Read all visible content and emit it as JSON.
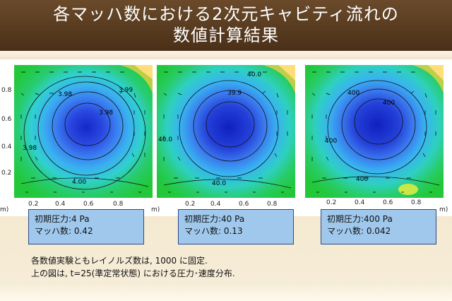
{
  "slide": {
    "title_line1": "各マッハ数における2次元キャビティ流れの",
    "title_line2": "数値計算結果"
  },
  "y_ticks": [
    "0.8",
    "0.6",
    "0.4",
    "0.2"
  ],
  "x_ticks": [
    "0.2",
    "0.4",
    "0.6",
    "0.8"
  ],
  "axis_unit_fragment": "m)",
  "panels": [
    {
      "contour_labels": [
        "3.98",
        "3.99",
        "3.98",
        "4.00",
        "3.98"
      ],
      "info": {
        "pressure": "初期圧力:4 Pa",
        "mach": "マッハ数: 0.42"
      }
    },
    {
      "contour_labels": [
        "40.0",
        "39.9",
        "40.0",
        "40.0"
      ],
      "info": {
        "pressure": "初期圧力:40 Pa",
        "mach": "マッハ数: 0.13"
      }
    },
    {
      "contour_labels": [
        "400",
        "400",
        "400",
        "400"
      ],
      "info": {
        "pressure": "初期圧力:400 Pa",
        "mach": "マッハ数: 0.042"
      }
    }
  ],
  "notes": {
    "line1": "各数値実験ともレイノルズ数は, 1000 に固定.",
    "line2": "上の図は, t=25(準定常状態) における圧力･速度分布."
  },
  "colors": {
    "title_bg": "#5a3c20",
    "info_bg": "#9fc8ec",
    "info_border": "#2a4a88",
    "field_outer": "#22c83a",
    "field_core": "#1e3ad8"
  }
}
